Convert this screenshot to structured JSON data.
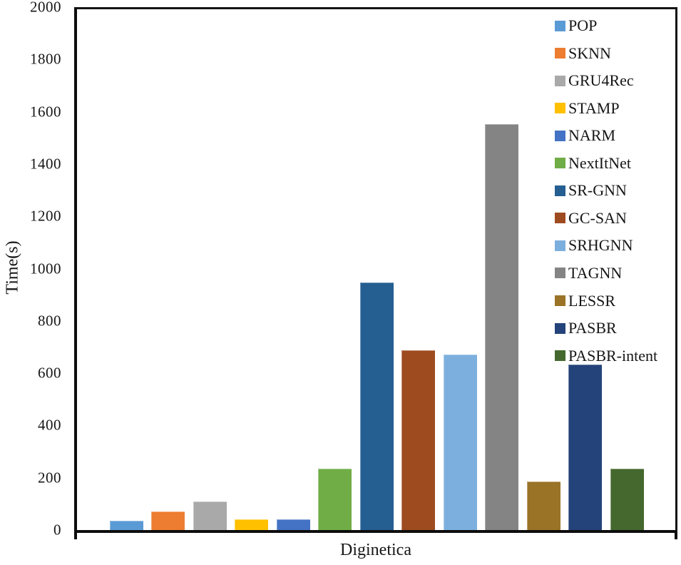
{
  "figure": {
    "background": "#ffffff",
    "text_color": "#161616"
  },
  "chart_data": {
    "type": "bar",
    "title": "",
    "xlabel": "Diginetica",
    "ylabel": "Time(s)",
    "ylim": [
      0,
      2000
    ],
    "ytick_step": 200,
    "y_ticks": [
      0,
      200,
      400,
      600,
      800,
      1000,
      1200,
      1400,
      1600,
      1800,
      2000
    ],
    "categories": [
      "Diginetica"
    ],
    "grid": false,
    "legend_position": "top-right",
    "series": [
      {
        "name": "POP",
        "values": [
          35
        ],
        "color": "#5B9BD5"
      },
      {
        "name": "SKNN",
        "values": [
          70
        ],
        "color": "#ED7D31"
      },
      {
        "name": "GRU4Rec",
        "values": [
          110
        ],
        "color": "#A9A9A9"
      },
      {
        "name": "STAMP",
        "values": [
          40
        ],
        "color": "#FFC000"
      },
      {
        "name": "NARM",
        "values": [
          40
        ],
        "color": "#4472C4"
      },
      {
        "name": "NextItNet",
        "values": [
          235
        ],
        "color": "#70AD47"
      },
      {
        "name": "SR-GNN",
        "values": [
          950
        ],
        "color": "#255E91"
      },
      {
        "name": "GC-SAN",
        "values": [
          690
        ],
        "color": "#9E4B20"
      },
      {
        "name": "SRHGNN",
        "values": [
          675
        ],
        "color": "#7CAFDD"
      },
      {
        "name": "TAGNN",
        "values": [
          1560
        ],
        "color": "#848484"
      },
      {
        "name": "LESSR",
        "values": [
          185
        ],
        "color": "#9A7327"
      },
      {
        "name": "PASBR",
        "values": [
          635
        ],
        "color": "#24437A"
      },
      {
        "name": "PASBR-intent",
        "values": [
          235
        ],
        "color": "#44682D"
      }
    ]
  }
}
